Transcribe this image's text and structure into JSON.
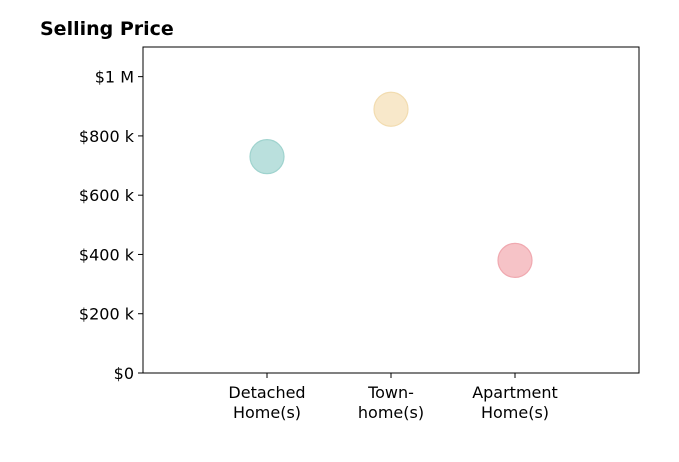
{
  "chart_data": {
    "type": "scatter",
    "title": "Selling Price",
    "xlabel": "",
    "ylabel": "",
    "categories": [
      [
        "Detached",
        "Home(s)"
      ],
      [
        "Town-",
        "home(s)"
      ],
      [
        "Apartment",
        "Home(s)"
      ]
    ],
    "values": [
      730000,
      890000,
      380000
    ],
    "colors": [
      "#b2ddd9",
      "#f7e6c4",
      "#f5bcc1"
    ],
    "edge_colors": [
      "#9fd3ce",
      "#f2dcb0",
      "#f0a9b0"
    ],
    "ylim": [
      0,
      1100000
    ],
    "xlim": [
      -1,
      3
    ],
    "y_ticks": [
      {
        "value": 0,
        "label": "$0"
      },
      {
        "value": 200000,
        "label": "$200 k"
      },
      {
        "value": 400000,
        "label": "$400 k"
      },
      {
        "value": 600000,
        "label": "$600 k"
      },
      {
        "value": 800000,
        "label": "$800 k"
      },
      {
        "value": 1000000,
        "label": "$1 M"
      }
    ],
    "grid": false,
    "legend": "none"
  }
}
